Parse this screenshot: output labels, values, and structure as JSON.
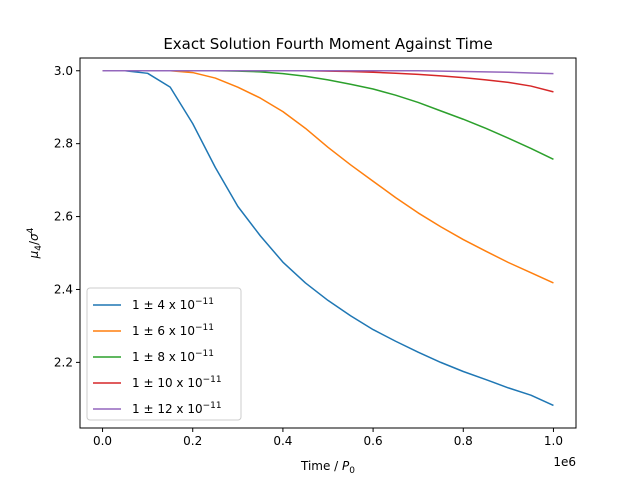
{
  "chart_data": {
    "type": "line",
    "title": "Exact Solution Fourth Moment Against Time",
    "xlabel_parts": {
      "text": "Time / ",
      "var": "P",
      "sub": "0"
    },
    "ylabel_parts": {
      "mu": "μ",
      "mu_sub": "4",
      "slash": "/",
      "sigma": "σ",
      "sigma_sup": "4"
    },
    "x_offset_label": "1e6",
    "xlim": [
      -0.05,
      1.05
    ],
    "ylim": [
      2.02,
      3.035
    ],
    "x_ticks": [
      0.0,
      0.2,
      0.4,
      0.6,
      0.8,
      1.0
    ],
    "x_tick_labels": [
      "0.0",
      "0.2",
      "0.4",
      "0.6",
      "0.8",
      "1.0"
    ],
    "y_ticks": [
      2.2,
      2.4,
      2.6,
      2.8,
      3.0
    ],
    "y_tick_labels": [
      "2.2",
      "2.4",
      "2.6",
      "2.8",
      "3.0"
    ],
    "grid": false,
    "legend_position": "lower-left",
    "x": [
      0.0,
      0.05,
      0.1,
      0.15,
      0.2,
      0.25,
      0.3,
      0.35,
      0.4,
      0.45,
      0.5,
      0.55,
      0.6,
      0.65,
      0.7,
      0.75,
      0.8,
      0.85,
      0.9,
      0.95,
      1.0
    ],
    "series": [
      {
        "name": {
          "prefix": "1 ±  4 x 10",
          "exp": "−11"
        },
        "color": "#1f77b4",
        "values": [
          3.0,
          3.0,
          2.993,
          2.955,
          2.855,
          2.735,
          2.628,
          2.547,
          2.475,
          2.418,
          2.37,
          2.328,
          2.29,
          2.258,
          2.228,
          2.2,
          2.175,
          2.153,
          2.13,
          2.11,
          2.082
        ]
      },
      {
        "name": {
          "prefix": "1 ±  6 x 10",
          "exp": "−11"
        },
        "color": "#ff7f0e",
        "values": [
          3.0,
          3.0,
          3.0,
          3.0,
          2.995,
          2.98,
          2.955,
          2.925,
          2.888,
          2.842,
          2.79,
          2.742,
          2.697,
          2.652,
          2.61,
          2.572,
          2.537,
          2.505,
          2.474,
          2.446,
          2.418
        ]
      },
      {
        "name": {
          "prefix": "1 ±  8 x 10",
          "exp": "−11"
        },
        "color": "#2ca02c",
        "values": [
          3.0,
          3.0,
          3.0,
          3.0,
          3.0,
          3.0,
          2.999,
          2.997,
          2.992,
          2.985,
          2.975,
          2.963,
          2.95,
          2.933,
          2.913,
          2.89,
          2.867,
          2.842,
          2.815,
          2.787,
          2.757
        ]
      },
      {
        "name": {
          "prefix": "1 ±  10 x 10",
          "exp": "−11"
        },
        "color": "#d62728",
        "values": [
          3.0,
          3.0,
          3.0,
          3.0,
          3.0,
          3.0,
          3.0,
          3.0,
          3.0,
          3.0,
          2.999,
          2.998,
          2.996,
          2.993,
          2.99,
          2.986,
          2.981,
          2.975,
          2.968,
          2.958,
          2.942
        ]
      },
      {
        "name": {
          "prefix": "1 ±  12 x 10",
          "exp": "−11"
        },
        "color": "#9467bd",
        "values": [
          3.0,
          3.0,
          3.0,
          3.0,
          3.0,
          3.0,
          3.0,
          3.0,
          3.0,
          3.0,
          3.0,
          3.0,
          3.0,
          3.0,
          3.0,
          2.999,
          2.998,
          2.997,
          2.996,
          2.994,
          2.992
        ]
      }
    ]
  }
}
